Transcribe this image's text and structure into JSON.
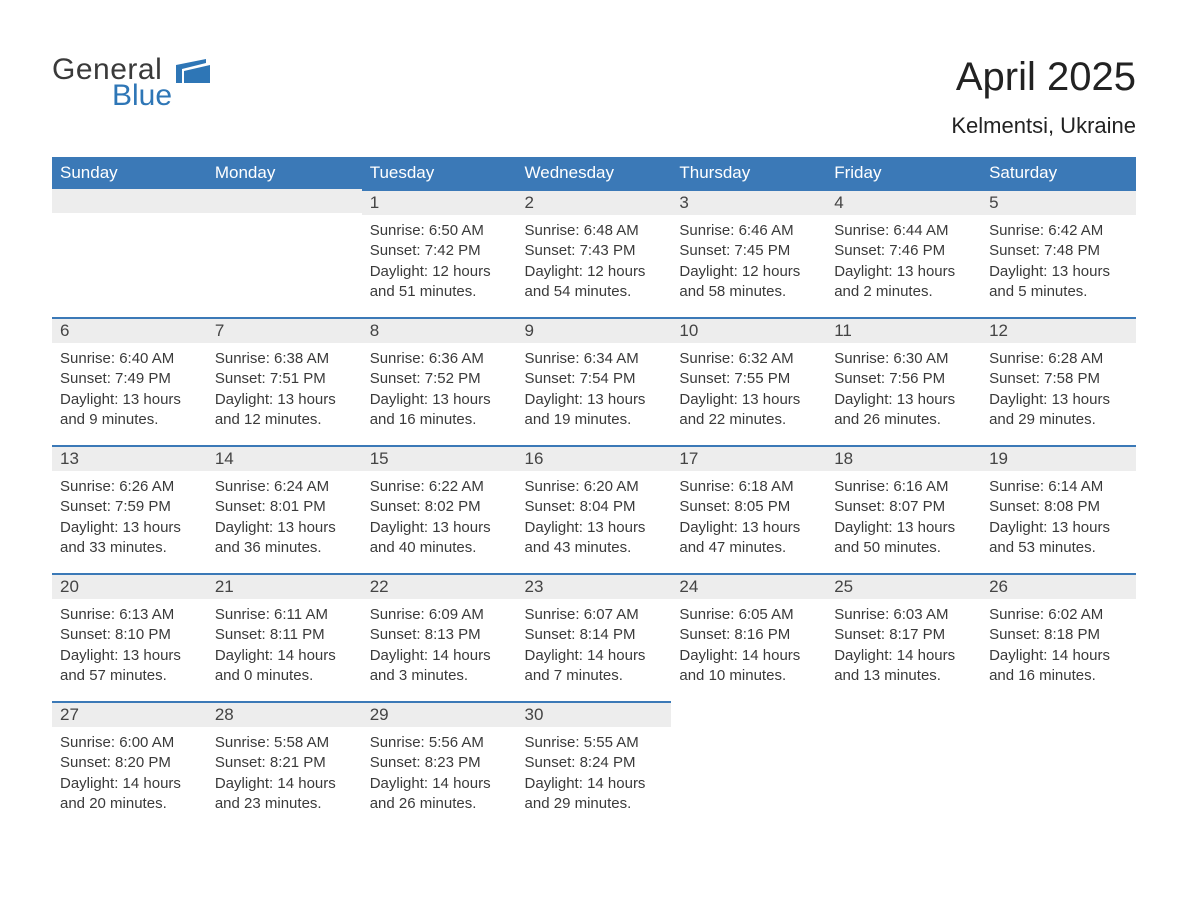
{
  "logo": {
    "general": "General",
    "blue": "Blue"
  },
  "title": "April 2025",
  "location": "Kelmentsi, Ukraine",
  "colors": {
    "header_bg": "#3b79b7",
    "header_text": "#ffffff",
    "daynum_bg": "#ededed",
    "row_border": "#3b79b7",
    "logo_blue": "#2e76b6",
    "page_bg": "#ffffff",
    "text": "#3a3a3a"
  },
  "weekdays": [
    "Sunday",
    "Monday",
    "Tuesday",
    "Wednesday",
    "Thursday",
    "Friday",
    "Saturday"
  ],
  "first_weekday_index": 2,
  "labels": {
    "sunrise": "Sunrise:",
    "sunset": "Sunset:",
    "daylight": "Daylight:"
  },
  "days": [
    {
      "n": 1,
      "sunrise": "6:50 AM",
      "sunset": "7:42 PM",
      "daylight": "12 hours and 51 minutes."
    },
    {
      "n": 2,
      "sunrise": "6:48 AM",
      "sunset": "7:43 PM",
      "daylight": "12 hours and 54 minutes."
    },
    {
      "n": 3,
      "sunrise": "6:46 AM",
      "sunset": "7:45 PM",
      "daylight": "12 hours and 58 minutes."
    },
    {
      "n": 4,
      "sunrise": "6:44 AM",
      "sunset": "7:46 PM",
      "daylight": "13 hours and 2 minutes."
    },
    {
      "n": 5,
      "sunrise": "6:42 AM",
      "sunset": "7:48 PM",
      "daylight": "13 hours and 5 minutes."
    },
    {
      "n": 6,
      "sunrise": "6:40 AM",
      "sunset": "7:49 PM",
      "daylight": "13 hours and 9 minutes."
    },
    {
      "n": 7,
      "sunrise": "6:38 AM",
      "sunset": "7:51 PM",
      "daylight": "13 hours and 12 minutes."
    },
    {
      "n": 8,
      "sunrise": "6:36 AM",
      "sunset": "7:52 PM",
      "daylight": "13 hours and 16 minutes."
    },
    {
      "n": 9,
      "sunrise": "6:34 AM",
      "sunset": "7:54 PM",
      "daylight": "13 hours and 19 minutes."
    },
    {
      "n": 10,
      "sunrise": "6:32 AM",
      "sunset": "7:55 PM",
      "daylight": "13 hours and 22 minutes."
    },
    {
      "n": 11,
      "sunrise": "6:30 AM",
      "sunset": "7:56 PM",
      "daylight": "13 hours and 26 minutes."
    },
    {
      "n": 12,
      "sunrise": "6:28 AM",
      "sunset": "7:58 PM",
      "daylight": "13 hours and 29 minutes."
    },
    {
      "n": 13,
      "sunrise": "6:26 AM",
      "sunset": "7:59 PM",
      "daylight": "13 hours and 33 minutes."
    },
    {
      "n": 14,
      "sunrise": "6:24 AM",
      "sunset": "8:01 PM",
      "daylight": "13 hours and 36 minutes."
    },
    {
      "n": 15,
      "sunrise": "6:22 AM",
      "sunset": "8:02 PM",
      "daylight": "13 hours and 40 minutes."
    },
    {
      "n": 16,
      "sunrise": "6:20 AM",
      "sunset": "8:04 PM",
      "daylight": "13 hours and 43 minutes."
    },
    {
      "n": 17,
      "sunrise": "6:18 AM",
      "sunset": "8:05 PM",
      "daylight": "13 hours and 47 minutes."
    },
    {
      "n": 18,
      "sunrise": "6:16 AM",
      "sunset": "8:07 PM",
      "daylight": "13 hours and 50 minutes."
    },
    {
      "n": 19,
      "sunrise": "6:14 AM",
      "sunset": "8:08 PM",
      "daylight": "13 hours and 53 minutes."
    },
    {
      "n": 20,
      "sunrise": "6:13 AM",
      "sunset": "8:10 PM",
      "daylight": "13 hours and 57 minutes."
    },
    {
      "n": 21,
      "sunrise": "6:11 AM",
      "sunset": "8:11 PM",
      "daylight": "14 hours and 0 minutes."
    },
    {
      "n": 22,
      "sunrise": "6:09 AM",
      "sunset": "8:13 PM",
      "daylight": "14 hours and 3 minutes."
    },
    {
      "n": 23,
      "sunrise": "6:07 AM",
      "sunset": "8:14 PM",
      "daylight": "14 hours and 7 minutes."
    },
    {
      "n": 24,
      "sunrise": "6:05 AM",
      "sunset": "8:16 PM",
      "daylight": "14 hours and 10 minutes."
    },
    {
      "n": 25,
      "sunrise": "6:03 AM",
      "sunset": "8:17 PM",
      "daylight": "14 hours and 13 minutes."
    },
    {
      "n": 26,
      "sunrise": "6:02 AM",
      "sunset": "8:18 PM",
      "daylight": "14 hours and 16 minutes."
    },
    {
      "n": 27,
      "sunrise": "6:00 AM",
      "sunset": "8:20 PM",
      "daylight": "14 hours and 20 minutes."
    },
    {
      "n": 28,
      "sunrise": "5:58 AM",
      "sunset": "8:21 PM",
      "daylight": "14 hours and 23 minutes."
    },
    {
      "n": 29,
      "sunrise": "5:56 AM",
      "sunset": "8:23 PM",
      "daylight": "14 hours and 26 minutes."
    },
    {
      "n": 30,
      "sunrise": "5:55 AM",
      "sunset": "8:24 PM",
      "daylight": "14 hours and 29 minutes."
    }
  ]
}
